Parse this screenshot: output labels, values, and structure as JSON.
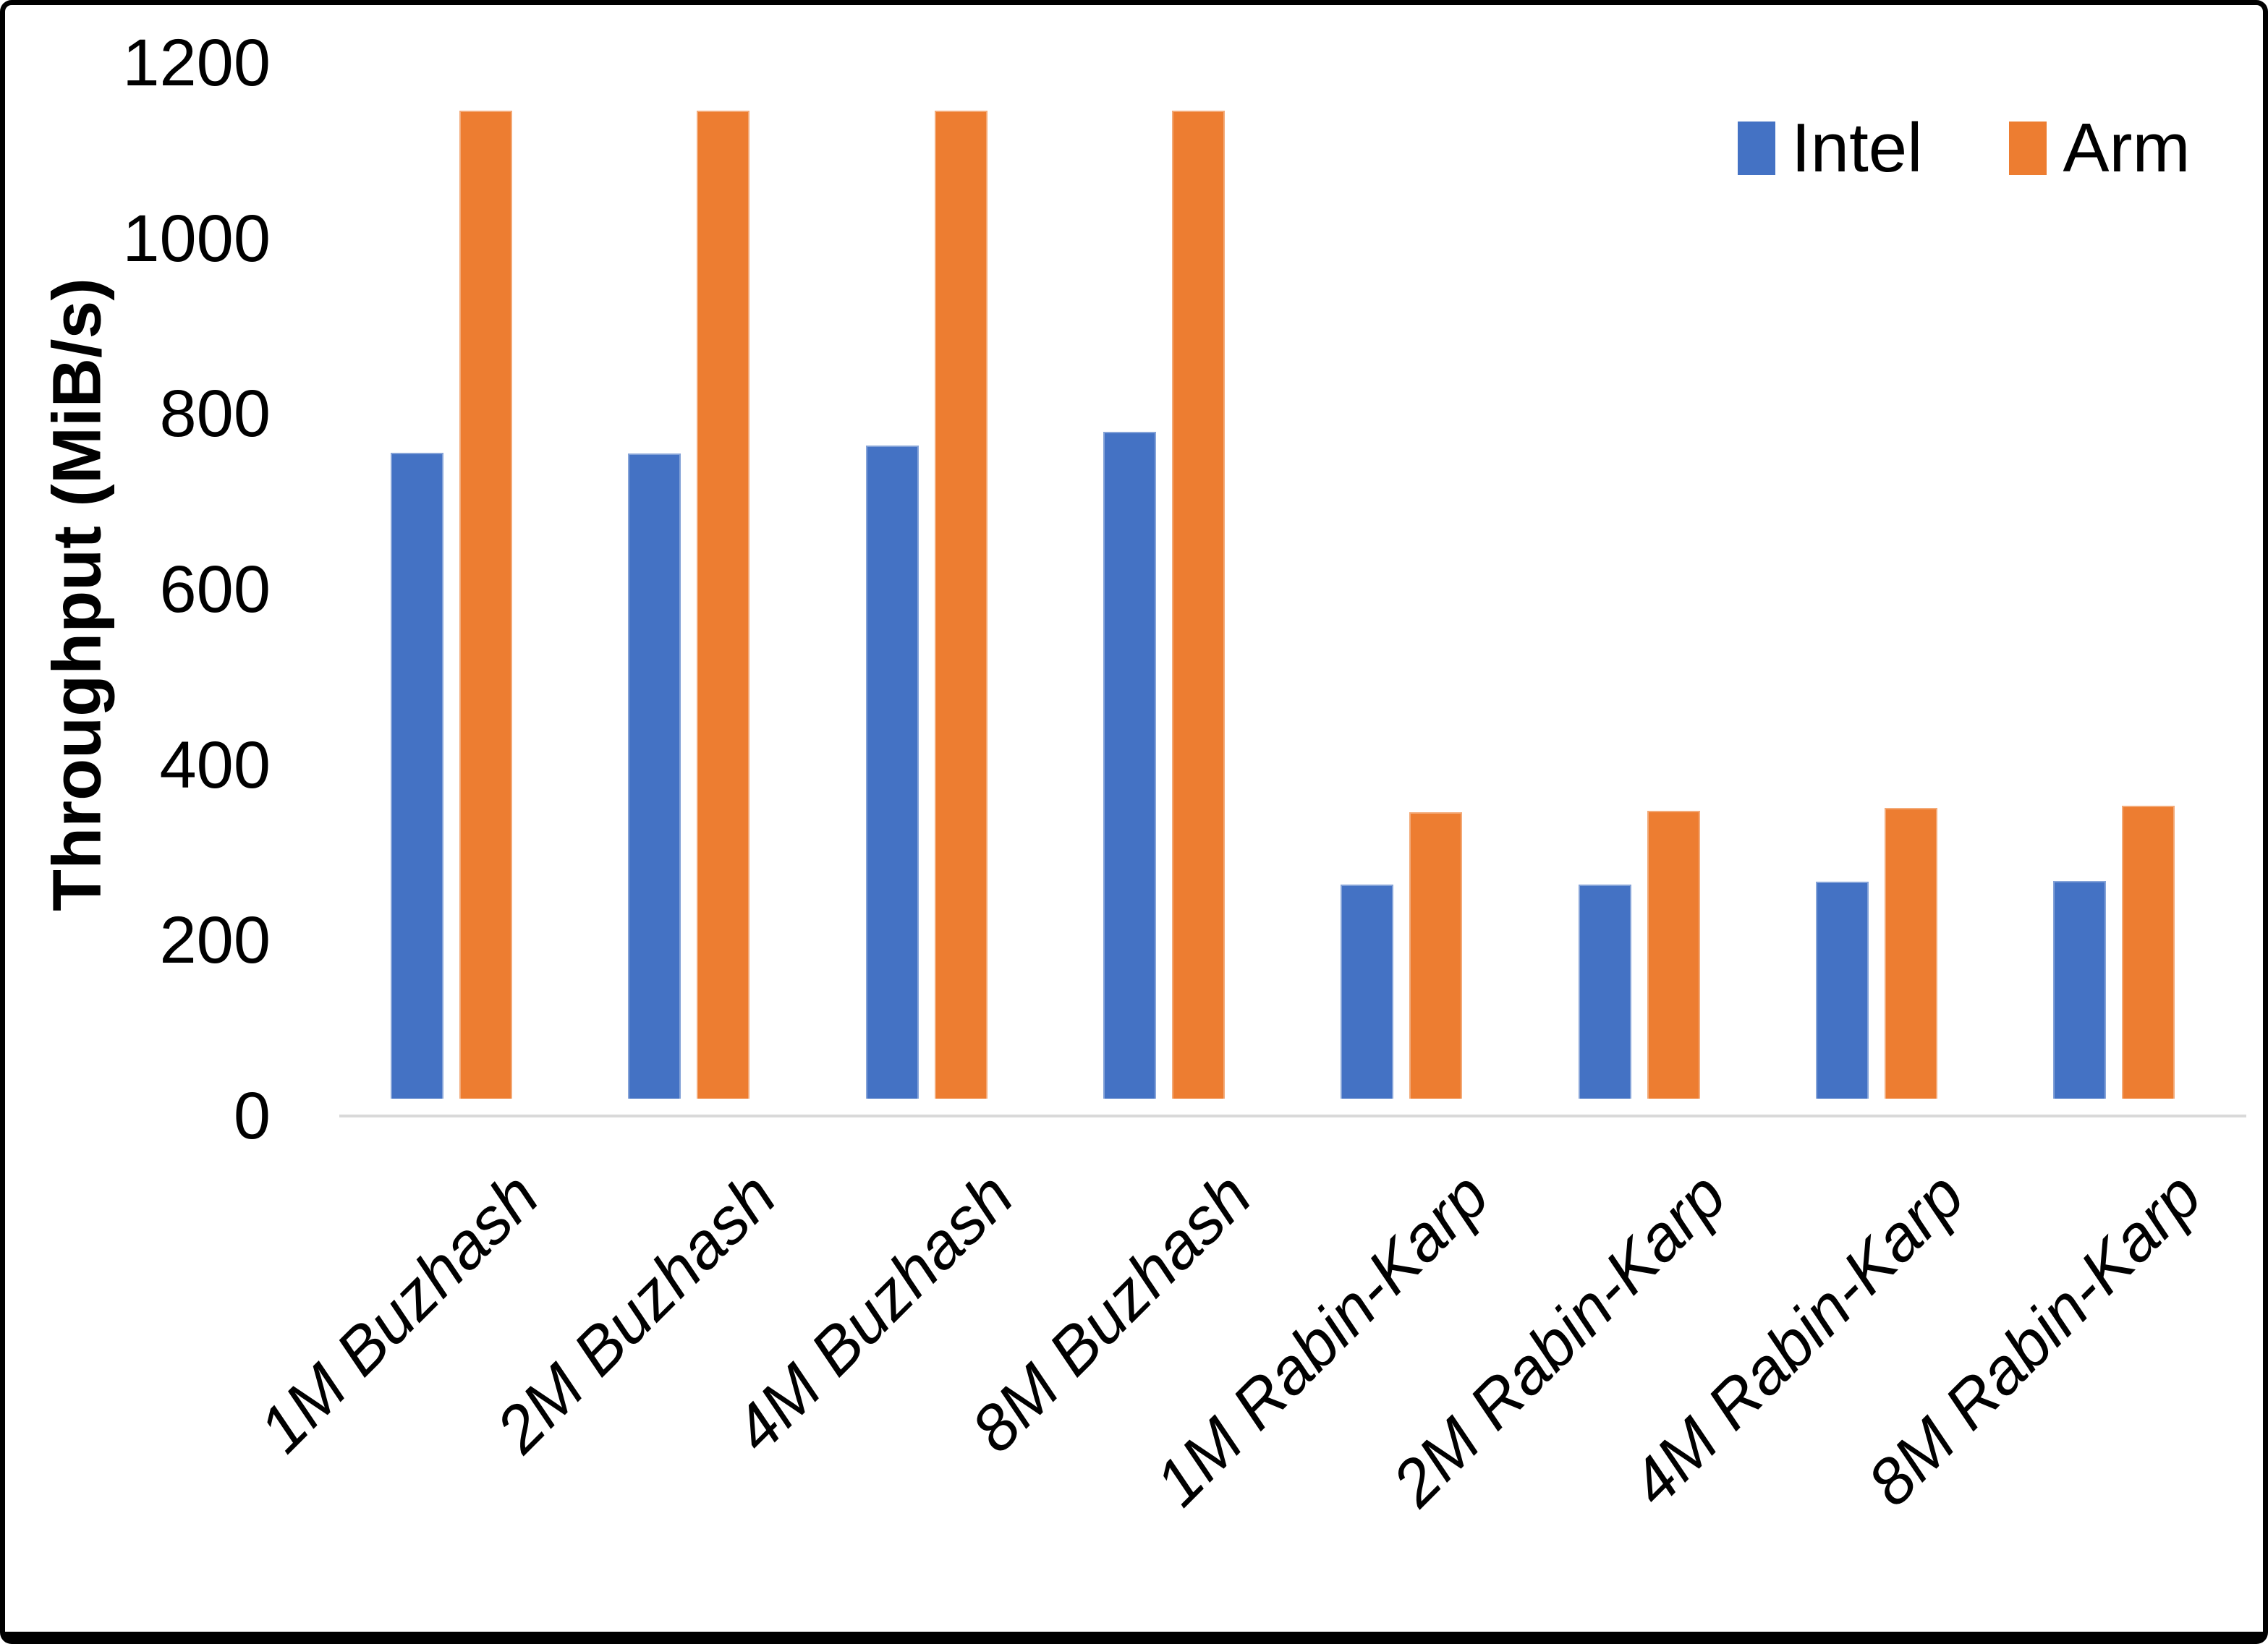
{
  "chart_data": {
    "type": "bar",
    "title": "",
    "xlabel": "",
    "ylabel": "Throughput (MiB/s)",
    "ylim": [
      0,
      1200
    ],
    "yticks": [
      0,
      200,
      400,
      600,
      800,
      1000,
      1200
    ],
    "grid": false,
    "legend_position": "top-right",
    "axis_line_color": "#D9D9D9",
    "text_color": "#000000",
    "categories": [
      "1M Buzhash",
      "2M Buzhash",
      "4M Buzhash",
      "8M Buzhash",
      "1M Rabin-Karp",
      "2M Rabin-Karp",
      "4M Rabin-Karp",
      "8M Rabin-Karp"
    ],
    "series": [
      {
        "name": "Intel",
        "color": "#4472C4",
        "values": [
          736,
          735,
          744,
          760,
          244,
          244,
          247,
          248
        ]
      },
      {
        "name": "Arm",
        "color": "#ED7D31",
        "values": [
          1126,
          1126,
          1126,
          1126,
          326,
          328,
          331,
          334
        ]
      }
    ]
  }
}
